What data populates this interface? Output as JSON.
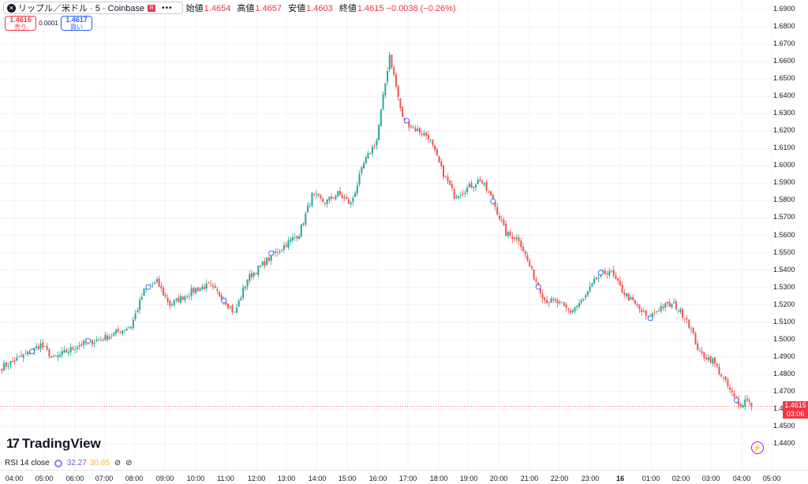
{
  "header": {
    "symbol_title": "リップル／米ドル · 5 · Coinbase",
    "symbol_badge": "R",
    "more_label": "•••",
    "ohlc": [
      {
        "label": "始値",
        "value": "1.4654"
      },
      {
        "label": "高値",
        "value": "1.4657"
      },
      {
        "label": "安値",
        "value": "1.4603"
      },
      {
        "label": "終値",
        "value": "1.4615 −0.0038 (−0.26%)"
      }
    ]
  },
  "trade": {
    "sell_price": "1.4616",
    "sell_label": "売り",
    "spread": "0.0001",
    "buy_price": "1.4617",
    "buy_label": "買い"
  },
  "price_tag": {
    "price": "1.4615",
    "countdown": "03:06"
  },
  "logo_text": "TradingView",
  "rsi": {
    "name": "RSI 14 close",
    "value1": "32.27",
    "value2": "30.65",
    "sym": "⊘"
  },
  "colors": {
    "up": "#26a69a",
    "down": "#ef5350",
    "grid": "#f0f3fa",
    "axis_text": "#131722",
    "price_line": "#f23645"
  },
  "chart_data": {
    "type": "candlestick",
    "y_axis": {
      "ticks": [
        "1.6900",
        "1.6800",
        "1.6700",
        "1.6600",
        "1.6500",
        "1.6400",
        "1.6300",
        "1.6200",
        "1.6100",
        "1.6000",
        "1.5900",
        "1.5800",
        "1.5700",
        "1.5600",
        "1.5500",
        "1.5400",
        "1.5300",
        "1.5200",
        "1.5100",
        "1.5000",
        "1.4900",
        "1.4800",
        "1.4700",
        "1.4600",
        "1.4500",
        "1.4400"
      ],
      "range": [
        1.4355,
        1.6955
      ]
    },
    "x_axis": {
      "ticks": [
        "04:00",
        "05:00",
        "06:00",
        "07:00",
        "08:00",
        "09:00",
        "10:00",
        "11:00",
        "12:00",
        "13:00",
        "14:00",
        "15:00",
        "16:00",
        "17:00",
        "18:00",
        "19:00",
        "20:00",
        "21:00",
        "22:00",
        "23:00",
        "16",
        "01:00",
        "02:00",
        "03:00",
        "04:00",
        "05:00"
      ]
    },
    "last_price": 1.4615,
    "anchors": [
      [
        0,
        1.484
      ],
      [
        12,
        1.492
      ],
      [
        18,
        1.497
      ],
      [
        24,
        1.489
      ],
      [
        36,
        1.497
      ],
      [
        48,
        1.501
      ],
      [
        60,
        1.508
      ],
      [
        66,
        1.528
      ],
      [
        72,
        1.533
      ],
      [
        78,
        1.52
      ],
      [
        90,
        1.529
      ],
      [
        96,
        1.531
      ],
      [
        102,
        1.525
      ],
      [
        108,
        1.515
      ],
      [
        114,
        1.535
      ],
      [
        126,
        1.549
      ],
      [
        138,
        1.561
      ],
      [
        144,
        1.583
      ],
      [
        150,
        1.579
      ],
      [
        156,
        1.584
      ],
      [
        162,
        1.578
      ],
      [
        168,
        1.601
      ],
      [
        174,
        1.615
      ],
      [
        180,
        1.664
      ],
      [
        186,
        1.627
      ],
      [
        192,
        1.621
      ],
      [
        198,
        1.617
      ],
      [
        204,
        1.598
      ],
      [
        210,
        1.583
      ],
      [
        216,
        1.587
      ],
      [
        222,
        1.592
      ],
      [
        228,
        1.58
      ],
      [
        234,
        1.561
      ],
      [
        240,
        1.558
      ],
      [
        246,
        1.539
      ],
      [
        252,
        1.523
      ],
      [
        258,
        1.521
      ],
      [
        264,
        1.516
      ],
      [
        270,
        1.523
      ],
      [
        276,
        1.535
      ],
      [
        282,
        1.54
      ],
      [
        288,
        1.528
      ],
      [
        294,
        1.52
      ],
      [
        300,
        1.512
      ],
      [
        306,
        1.519
      ],
      [
        312,
        1.52
      ],
      [
        318,
        1.512
      ],
      [
        324,
        1.492
      ],
      [
        330,
        1.488
      ],
      [
        336,
        1.475
      ],
      [
        342,
        1.462
      ],
      [
        346,
        1.466
      ],
      [
        348,
        1.4615
      ]
    ],
    "markers": [
      14,
      40,
      68,
      103,
      125,
      188,
      228,
      249,
      278,
      301,
      341
    ],
    "current_x": 348,
    "candle_count": 350
  }
}
